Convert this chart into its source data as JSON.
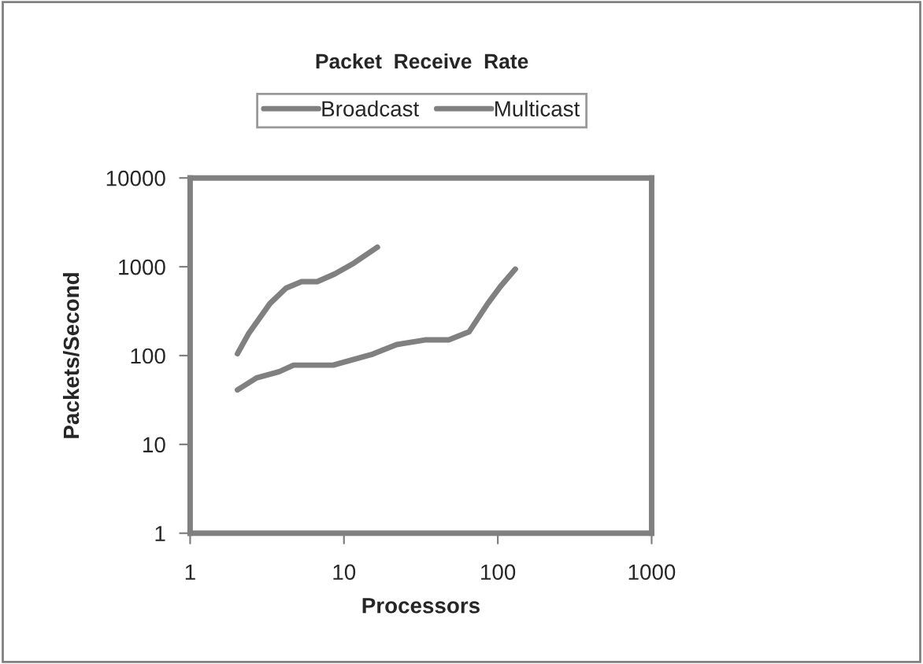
{
  "chart_data": {
    "type": "line",
    "title": "Packet  Receive  Rate",
    "xlabel": "Processors",
    "ylabel": "Packets/Second",
    "log": "xy",
    "xlim": [
      1,
      1000
    ],
    "ylim": [
      1,
      10000
    ],
    "xticks": [
      1,
      10,
      100,
      1000
    ],
    "yticks": [
      1,
      10,
      100,
      1000,
      10000
    ],
    "grid": false,
    "legend": "top",
    "marker": "none",
    "line_style": "solid",
    "series": [
      {
        "name": "Broadcast",
        "color": "#808080",
        "x": [
          2.03,
          2.7,
          3.8,
          4.7,
          8.5,
          15.4,
          22,
          33.6,
          48,
          65,
          86,
          104,
          130
        ],
        "values": [
          41,
          56,
          66,
          78,
          78,
          104,
          133,
          150,
          150,
          185,
          385,
          600,
          940
        ]
      },
      {
        "name": "Multicast",
        "color": "#808080",
        "x": [
          2.03,
          2.4,
          3.3,
          4.2,
          5.3,
          6.7,
          8.7,
          11.6,
          16.5
        ],
        "values": [
          105,
          177,
          385,
          575,
          680,
          680,
          830,
          1100,
          1660
        ]
      }
    ]
  }
}
